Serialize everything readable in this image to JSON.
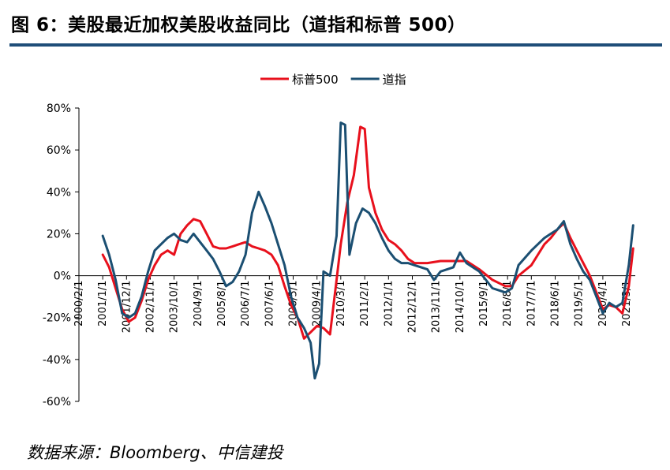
{
  "page": {
    "title": "图 6：美股最近加权美股收益同比（道指和标普 500）",
    "source": "数据来源：Bloomberg、中信建投"
  },
  "colors": {
    "sp500": "#e8101c",
    "dji": "#1b4f72",
    "axis": "#000000",
    "title_rule": "#1f4e79"
  },
  "chart_data": {
    "type": "line",
    "title": "",
    "xlabel": "",
    "ylabel": "",
    "grid": false,
    "legend_position": "top-center",
    "ylim": [
      -0.6,
      0.8
    ],
    "xlim": [
      "2000-02-01",
      "2021-07-01"
    ],
    "y_ticks": [
      -0.6,
      -0.4,
      -0.2,
      0,
      0.2,
      0.4,
      0.6,
      0.8
    ],
    "y_tick_labels": [
      "-60%",
      "-40%",
      "-20%",
      "0%",
      "20%",
      "40%",
      "60%",
      "80%"
    ],
    "x_ticks": [
      "2000-02-01",
      "2001-01-01",
      "2001-12-01",
      "2002-11-01",
      "2003-10-01",
      "2004-09-01",
      "2005-08-01",
      "2006-07-01",
      "2007-06-01",
      "2008-05-01",
      "2009-04-01",
      "2010-03-01",
      "2011-02-01",
      "2012-01-01",
      "2012-12-01",
      "2013-11-01",
      "2014-10-01",
      "2015-09-01",
      "2016-08-01",
      "2017-07-01",
      "2018-06-01",
      "2019-05-01",
      "2020-04-01",
      "2021-03-01"
    ],
    "x_tick_labels": [
      "2000/2/1",
      "2001/1/1",
      "2001/12/1",
      "2002/11/1",
      "2003/10/1",
      "2004/9/1",
      "2005/8/1",
      "2006/7/1",
      "2007/6/1",
      "2008/5/1",
      "2009/4/1",
      "2010/3/1",
      "2011/2/1",
      "2012/1/1",
      "2012/12/1",
      "2013/11/1",
      "2014/10/1",
      "2015/9/1",
      "2016/8/1",
      "2017/7/1",
      "2018/6/1",
      "2019/5/1",
      "2020/4/1",
      "2021/3/1"
    ],
    "series": [
      {
        "name": "标普500",
        "color": "#e8101c",
        "points": [
          [
            "2001-01-01",
            0.1
          ],
          [
            "2001-04-01",
            0.04
          ],
          [
            "2001-07-01",
            -0.06
          ],
          [
            "2001-10-01",
            -0.16
          ],
          [
            "2002-01-01",
            -0.22
          ],
          [
            "2002-04-01",
            -0.2
          ],
          [
            "2002-07-01",
            -0.12
          ],
          [
            "2002-10-01",
            -0.02
          ],
          [
            "2003-01-01",
            0.05
          ],
          [
            "2003-04-01",
            0.1
          ],
          [
            "2003-07-01",
            0.12
          ],
          [
            "2003-10-01",
            0.1
          ],
          [
            "2004-01-01",
            0.2
          ],
          [
            "2004-04-01",
            0.24
          ],
          [
            "2004-07-01",
            0.27
          ],
          [
            "2004-10-01",
            0.26
          ],
          [
            "2005-01-01",
            0.2
          ],
          [
            "2005-04-01",
            0.14
          ],
          [
            "2005-07-01",
            0.13
          ],
          [
            "2005-10-01",
            0.13
          ],
          [
            "2006-01-01",
            0.14
          ],
          [
            "2006-04-01",
            0.15
          ],
          [
            "2006-07-01",
            0.16
          ],
          [
            "2006-10-01",
            0.14
          ],
          [
            "2007-01-01",
            0.13
          ],
          [
            "2007-04-01",
            0.12
          ],
          [
            "2007-07-01",
            0.1
          ],
          [
            "2007-10-01",
            0.05
          ],
          [
            "2008-01-01",
            -0.05
          ],
          [
            "2008-04-01",
            -0.14
          ],
          [
            "2008-07-01",
            -0.2
          ],
          [
            "2008-10-01",
            -0.3
          ],
          [
            "2009-01-01",
            -0.27
          ],
          [
            "2009-04-01",
            -0.24
          ],
          [
            "2009-07-01",
            -0.25
          ],
          [
            "2009-10-01",
            -0.28
          ],
          [
            "2010-01-01",
            -0.02
          ],
          [
            "2010-03-01",
            0.15
          ],
          [
            "2010-06-01",
            0.35
          ],
          [
            "2010-09-01",
            0.48
          ],
          [
            "2010-12-01",
            0.71
          ],
          [
            "2011-02-01",
            0.7
          ],
          [
            "2011-04-01",
            0.42
          ],
          [
            "2011-07-01",
            0.3
          ],
          [
            "2011-10-01",
            0.22
          ],
          [
            "2012-01-01",
            0.17
          ],
          [
            "2012-04-01",
            0.15
          ],
          [
            "2012-07-01",
            0.12
          ],
          [
            "2012-10-01",
            0.08
          ],
          [
            "2013-01-01",
            0.06
          ],
          [
            "2013-07-01",
            0.06
          ],
          [
            "2014-01-01",
            0.07
          ],
          [
            "2014-07-01",
            0.07
          ],
          [
            "2015-01-01",
            0.07
          ],
          [
            "2015-07-01",
            0.03
          ],
          [
            "2016-01-01",
            -0.02
          ],
          [
            "2016-07-01",
            -0.05
          ],
          [
            "2016-10-01",
            -0.05
          ],
          [
            "2017-01-01",
            0.0
          ],
          [
            "2017-07-01",
            0.05
          ],
          [
            "2017-10-01",
            0.1
          ],
          [
            "2018-01-01",
            0.15
          ],
          [
            "2018-04-01",
            0.18
          ],
          [
            "2018-07-01",
            0.22
          ],
          [
            "2018-10-01",
            0.25
          ],
          [
            "2019-01-01",
            0.18
          ],
          [
            "2019-04-01",
            0.12
          ],
          [
            "2019-07-01",
            0.06
          ],
          [
            "2019-10-01",
            0.0
          ],
          [
            "2020-01-01",
            -0.08
          ],
          [
            "2020-04-01",
            -0.16
          ],
          [
            "2020-07-01",
            -0.14
          ],
          [
            "2020-10-01",
            -0.15
          ],
          [
            "2021-01-01",
            -0.18
          ],
          [
            "2021-04-01",
            -0.05
          ],
          [
            "2021-06-01",
            0.13
          ]
        ]
      },
      {
        "name": "道指",
        "color": "#1b4f72",
        "points": [
          [
            "2001-01-01",
            0.19
          ],
          [
            "2001-04-01",
            0.1
          ],
          [
            "2001-07-01",
            -0.02
          ],
          [
            "2001-10-01",
            -0.18
          ],
          [
            "2002-01-01",
            -0.2
          ],
          [
            "2002-04-01",
            -0.18
          ],
          [
            "2002-07-01",
            -0.1
          ],
          [
            "2002-10-01",
            0.02
          ],
          [
            "2003-01-01",
            0.12
          ],
          [
            "2003-04-01",
            0.15
          ],
          [
            "2003-07-01",
            0.18
          ],
          [
            "2003-10-01",
            0.2
          ],
          [
            "2004-01-01",
            0.17
          ],
          [
            "2004-04-01",
            0.16
          ],
          [
            "2004-07-01",
            0.2
          ],
          [
            "2004-10-01",
            0.16
          ],
          [
            "2005-01-01",
            0.12
          ],
          [
            "2005-04-01",
            0.08
          ],
          [
            "2005-07-01",
            0.02
          ],
          [
            "2005-10-01",
            -0.05
          ],
          [
            "2006-01-01",
            -0.03
          ],
          [
            "2006-04-01",
            0.02
          ],
          [
            "2006-07-01",
            0.1
          ],
          [
            "2006-10-01",
            0.3
          ],
          [
            "2007-01-01",
            0.4
          ],
          [
            "2007-04-01",
            0.33
          ],
          [
            "2007-07-01",
            0.25
          ],
          [
            "2007-10-01",
            0.15
          ],
          [
            "2008-01-01",
            0.05
          ],
          [
            "2008-04-01",
            -0.1
          ],
          [
            "2008-07-01",
            -0.2
          ],
          [
            "2008-10-01",
            -0.25
          ],
          [
            "2009-01-01",
            -0.32
          ],
          [
            "2009-03-01",
            -0.49
          ],
          [
            "2009-05-01",
            -0.42
          ],
          [
            "2009-07-01",
            0.02
          ],
          [
            "2009-10-01",
            0.0
          ],
          [
            "2010-01-01",
            0.19
          ],
          [
            "2010-03-01",
            0.73
          ],
          [
            "2010-05-01",
            0.72
          ],
          [
            "2010-07-01",
            0.1
          ],
          [
            "2010-10-01",
            0.25
          ],
          [
            "2011-01-01",
            0.32
          ],
          [
            "2011-04-01",
            0.3
          ],
          [
            "2011-07-01",
            0.25
          ],
          [
            "2011-10-01",
            0.18
          ],
          [
            "2012-01-01",
            0.12
          ],
          [
            "2012-04-01",
            0.08
          ],
          [
            "2012-07-01",
            0.06
          ],
          [
            "2012-10-01",
            0.06
          ],
          [
            "2013-01-01",
            0.05
          ],
          [
            "2013-07-01",
            0.03
          ],
          [
            "2013-10-01",
            -0.02
          ],
          [
            "2014-01-01",
            0.02
          ],
          [
            "2014-07-01",
            0.04
          ],
          [
            "2014-10-01",
            0.11
          ],
          [
            "2015-01-01",
            0.06
          ],
          [
            "2015-07-01",
            0.02
          ],
          [
            "2016-01-01",
            -0.06
          ],
          [
            "2016-07-01",
            -0.08
          ],
          [
            "2016-10-01",
            -0.06
          ],
          [
            "2017-01-01",
            0.05
          ],
          [
            "2017-07-01",
            0.12
          ],
          [
            "2017-10-01",
            0.15
          ],
          [
            "2018-01-01",
            0.18
          ],
          [
            "2018-04-01",
            0.2
          ],
          [
            "2018-07-01",
            0.22
          ],
          [
            "2018-10-01",
            0.26
          ],
          [
            "2019-01-01",
            0.15
          ],
          [
            "2019-04-01",
            0.08
          ],
          [
            "2019-07-01",
            0.02
          ],
          [
            "2019-10-01",
            -0.02
          ],
          [
            "2020-01-01",
            -0.1
          ],
          [
            "2020-04-01",
            -0.18
          ],
          [
            "2020-07-01",
            -0.13
          ],
          [
            "2020-10-01",
            -0.15
          ],
          [
            "2021-01-01",
            -0.13
          ],
          [
            "2021-04-01",
            0.05
          ],
          [
            "2021-06-01",
            0.24
          ]
        ]
      }
    ]
  }
}
